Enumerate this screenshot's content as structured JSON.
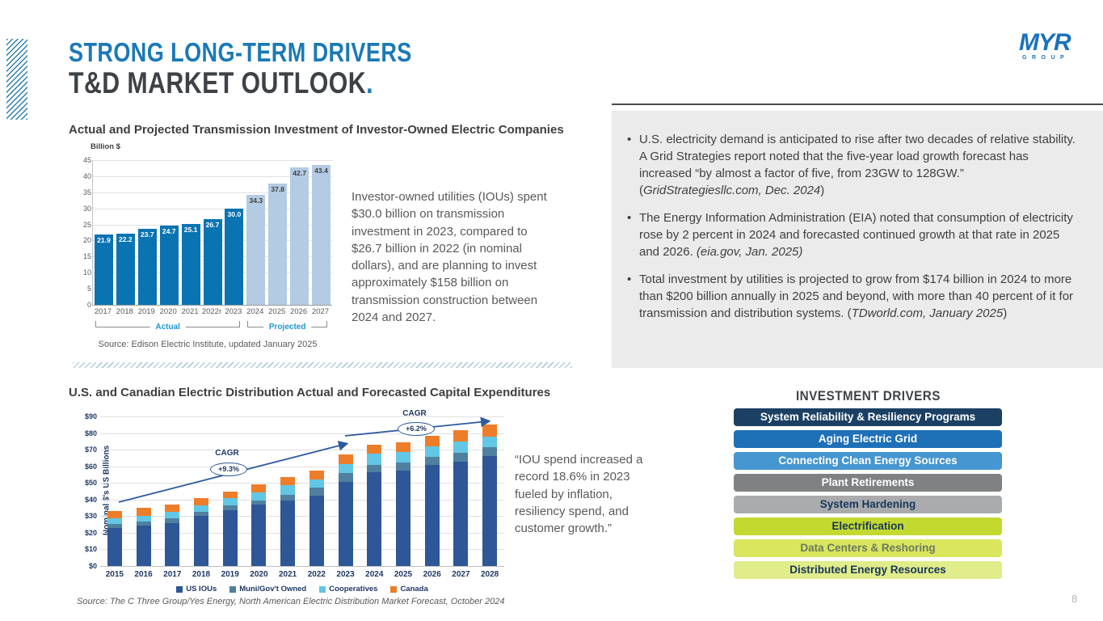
{
  "slide": {
    "kicker": "STRONG LONG-TERM DRIVERS",
    "title": "T&D MARKET OUTLOOK",
    "title_period": ".",
    "page_number": "8",
    "logo_text": "MYR",
    "logo_sub": "GROUP",
    "accent_blue": "#1b79b7"
  },
  "transmission_section": {
    "heading": "Actual and Projected Transmission Investment of Investor-Owned Electric Companies",
    "note": "Investor-owned utilities (IOUs) spent $30.0 billion on transmission investment in 2023, compared to $26.7 billion in 2022 (in nominal dollars), and are planning to invest approximately $158 billion on transmission construction between 2024 and 2027.",
    "source": "Source:  Edison Electric Institute, updated January 2025"
  },
  "insight_panel": {
    "bullets": [
      {
        "pre": "U.S. electricity demand is anticipated to rise after two decades of relative stability. A Grid Strategies report noted that the five-year load growth forecast has increased “by almost a factor of five, from 23GW to 128GW.” (",
        "cite": "GridStrategiesllc.com, Dec. 2024",
        "post": ")"
      },
      {
        "pre": "The Energy Information Administration (EIA) noted that consumption of electricity rose by 2 percent in 2024 and forecasted continued growth at that rate in 2025 and 2026. ",
        "cite": "(eia.gov, Jan. 2025)",
        "post": ""
      },
      {
        "pre": "Total investment by utilities is projected to grow from $174 billion in 2024 to more than $200 billion annually in 2025 and beyond, with more than 40 percent of it for transmission and distribution systems. (",
        "cite": "TDworld.com, January 2025",
        "post": ")"
      }
    ]
  },
  "distribution_section": {
    "heading": "U.S. and Canadian Electric Distribution Actual and Forecasted Capital Expenditures",
    "quote": "“IOU spend increased a record 18.6% in 2023 fueled by inflation, resiliency spend, and customer growth.”",
    "source": "Source:  The C Three Group/Yes Energy, North American Electric Distribution Market Forecast, October 2024"
  },
  "investment_drivers": {
    "heading": "INVESTMENT DRIVERS",
    "items": [
      {
        "label": "System Reliability & Resiliency Programs",
        "bg": "#1c4064",
        "fg": "#ffffff"
      },
      {
        "label": "Aging Electric Grid",
        "bg": "#1e70b7",
        "fg": "#ffffff"
      },
      {
        "label": "Connecting Clean Energy Sources",
        "bg": "#4596d1",
        "fg": "#ffffff"
      },
      {
        "label": "Plant Retirements",
        "bg": "#7f8183",
        "fg": "#ffffff"
      },
      {
        "label": "System Hardening",
        "bg": "#a9abad",
        "fg": "#17365d"
      },
      {
        "label": "Electrification",
        "bg": "#c3d930",
        "fg": "#17365d"
      },
      {
        "label": "Data Centers & Reshoring",
        "bg": "#d9e65e",
        "fg": "#6e7860"
      },
      {
        "label": "Distributed Energy Resources",
        "bg": "#e1ec8a",
        "fg": "#17365d"
      }
    ]
  },
  "chart_data": [
    {
      "id": "transmission-investment",
      "type": "bar",
      "title": "Actual and Projected Transmission Investment of Investor-Owned Electric Companies",
      "ylabel": "Billion $",
      "ylim": [
        0,
        45
      ],
      "ytick_step": 5,
      "grid": true,
      "categories": [
        "2017",
        "2018",
        "2019",
        "2020",
        "2021",
        "2022r",
        "2023",
        "2024",
        "2025",
        "2026",
        "2027"
      ],
      "values": [
        21.9,
        22.2,
        23.7,
        24.7,
        25.1,
        26.7,
        30.0,
        34.3,
        37.8,
        42.7,
        43.4
      ],
      "value_labels": [
        "21.9",
        "22.2",
        "23.7",
        "24.7",
        "25.1",
        "26.7",
        "30.0",
        "34.3",
        "37.8",
        "42.7",
        "43.4"
      ],
      "groups": [
        {
          "label": "Actual",
          "from": "2017",
          "to": "2023",
          "bar_color": "#0a74b2",
          "label_color": "#ffffff"
        },
        {
          "label": "Projected",
          "from": "2024",
          "to": "2027",
          "bar_color": "#b3cbe3",
          "label_color": "#3f3f3f"
        }
      ],
      "source": "Source: Edison Electric Institute, updated January 2025"
    },
    {
      "id": "distribution-capex",
      "type": "stacked-bar",
      "ylabel": "Nominal $'s US Billions",
      "ylim": [
        0,
        90
      ],
      "ytick_step": 10,
      "ytick_prefix": "$",
      "grid": true,
      "legend_position": "bottom",
      "categories": [
        "2015",
        "2016",
        "2017",
        "2018",
        "2019",
        "2020",
        "2021",
        "2022",
        "2023",
        "2024",
        "2025",
        "2026",
        "2027",
        "2028"
      ],
      "series": [
        {
          "name": "US IOUs",
          "color": "#2d5796",
          "values": [
            23,
            24.5,
            26,
            30,
            33.5,
            37,
            39.5,
            42.5,
            50.5,
            56.5,
            57.5,
            61,
            63,
            66
          ]
        },
        {
          "name": "Muni/Gov't Owned",
          "color": "#50809f",
          "values": [
            2.5,
            2.5,
            2.5,
            2.5,
            3,
            2.5,
            3.5,
            4.5,
            5.5,
            4.5,
            5,
            4.5,
            5,
            5.5
          ]
        },
        {
          "name": "Cooperatives",
          "color": "#62c7e5",
          "values": [
            3,
            3,
            4,
            4,
            4.5,
            5,
            5.5,
            5,
            5.5,
            6.5,
            6,
            6.5,
            7,
            6.5
          ]
        },
        {
          "name": "Canada",
          "color": "#ee7d2a",
          "values": [
            4.5,
            5,
            4.5,
            4.5,
            4,
            4.5,
            5,
            5.5,
            5.5,
            5.5,
            6,
            6.5,
            6.5,
            7
          ]
        }
      ],
      "annotations": [
        {
          "label": "CAGR",
          "value": "+9.3%"
        },
        {
          "label": "CAGR",
          "value": "+6.2%"
        }
      ]
    }
  ]
}
